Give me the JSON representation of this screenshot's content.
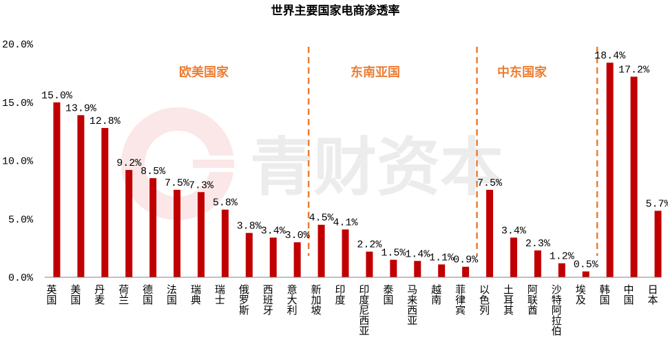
{
  "chart_data": {
    "type": "bar",
    "title": "世界主要国家电商渗透率",
    "categories": [
      "英国",
      "美国",
      "丹麦",
      "荷兰",
      "德国",
      "法国",
      "瑞典",
      "瑞士",
      "俄罗斯",
      "西班牙",
      "意大利",
      "新加坡",
      "印度",
      "印度尼西亚",
      "泰国",
      "马来西亚",
      "越南",
      "菲律宾",
      "以色列",
      "土耳其",
      "阿联酋",
      "沙特阿拉伯",
      "埃及",
      "韩国",
      "中国",
      "日本"
    ],
    "values": [
      15.0,
      13.9,
      12.8,
      9.2,
      8.5,
      7.5,
      7.3,
      5.8,
      3.8,
      3.4,
      3.0,
      4.5,
      4.1,
      2.2,
      1.5,
      1.4,
      1.1,
      0.9,
      7.5,
      3.4,
      2.3,
      1.2,
      0.5,
      18.4,
      17.2,
      5.7
    ],
    "value_labels": [
      "15.0%",
      "13.9%",
      "12.8%",
      "9.2%",
      "8.5%",
      "7.5%",
      "7.3%",
      "5.8%",
      "3.8%",
      "3.4%",
      "3.0%",
      "4.5%",
      "4.1%",
      "2.2%",
      "1.5%",
      "1.4%",
      "1.1%",
      "0.9%",
      "7.5%",
      "3.4%",
      "2.3%",
      "1.2%",
      "0.5%",
      "18.4%",
      "17.2%",
      "5.7%"
    ],
    "ylim": [
      0,
      20
    ],
    "yticks": [
      "0.0%",
      "5.0%",
      "10.0%",
      "15.0%",
      "20.0%"
    ],
    "bar_color": "#c00000",
    "grid": false,
    "legend": "none",
    "region_labels": [
      "欧美国家",
      "东南亚国",
      "中东国家"
    ],
    "region_color": "#ed7d31",
    "divider_color": "#ed7d31",
    "watermark": "青财资本"
  }
}
